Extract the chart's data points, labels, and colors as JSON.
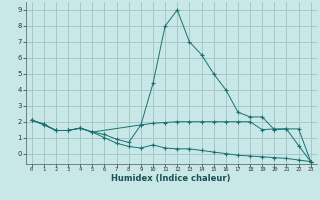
{
  "xlabel": "Humidex (Indice chaleur)",
  "bg_color": "#c8e8e8",
  "grid_color": "#a8c8c8",
  "line_color": "#1a7070",
  "xlim": [
    -0.5,
    23.5
  ],
  "ylim": [
    -0.65,
    9.5
  ],
  "xticks": [
    0,
    1,
    2,
    3,
    4,
    5,
    6,
    7,
    8,
    9,
    10,
    11,
    12,
    13,
    14,
    15,
    16,
    17,
    18,
    19,
    20,
    21,
    22,
    23
  ],
  "yticks": [
    0,
    1,
    2,
    3,
    4,
    5,
    6,
    7,
    8,
    9
  ],
  "line1_x": [
    0,
    1,
    2,
    3,
    4,
    5,
    6,
    7,
    8,
    9,
    10,
    11,
    12,
    13,
    14,
    15,
    16,
    17,
    18,
    19,
    20,
    21,
    22,
    23
  ],
  "line1_y": [
    2.1,
    1.8,
    1.45,
    1.45,
    1.6,
    1.35,
    1.0,
    0.65,
    0.45,
    0.35,
    0.55,
    0.35,
    0.3,
    0.3,
    0.2,
    0.1,
    0.0,
    -0.1,
    -0.15,
    -0.2,
    -0.25,
    -0.3,
    -0.4,
    -0.5
  ],
  "line2_x": [
    0,
    1,
    2,
    3,
    4,
    5,
    9,
    10,
    11,
    12,
    13,
    14,
    15,
    16,
    17,
    18,
    19,
    20,
    21,
    22,
    23
  ],
  "line2_y": [
    2.1,
    1.85,
    1.45,
    1.45,
    1.6,
    1.35,
    1.8,
    4.4,
    8.0,
    9.0,
    7.0,
    6.2,
    5.0,
    4.0,
    2.6,
    2.3,
    2.3,
    1.5,
    1.55,
    1.55,
    -0.5
  ],
  "line3_x": [
    0,
    1,
    2,
    3,
    4,
    5,
    6,
    7,
    8,
    9,
    10,
    11,
    12,
    13,
    14,
    15,
    16,
    17,
    18,
    19,
    20,
    21,
    22,
    23
  ],
  "line3_y": [
    2.1,
    1.85,
    1.45,
    1.45,
    1.6,
    1.35,
    1.2,
    0.9,
    0.7,
    1.8,
    1.9,
    1.95,
    2.0,
    2.0,
    2.0,
    2.0,
    2.0,
    2.0,
    2.0,
    1.5,
    1.55,
    1.55,
    0.5,
    -0.5
  ]
}
